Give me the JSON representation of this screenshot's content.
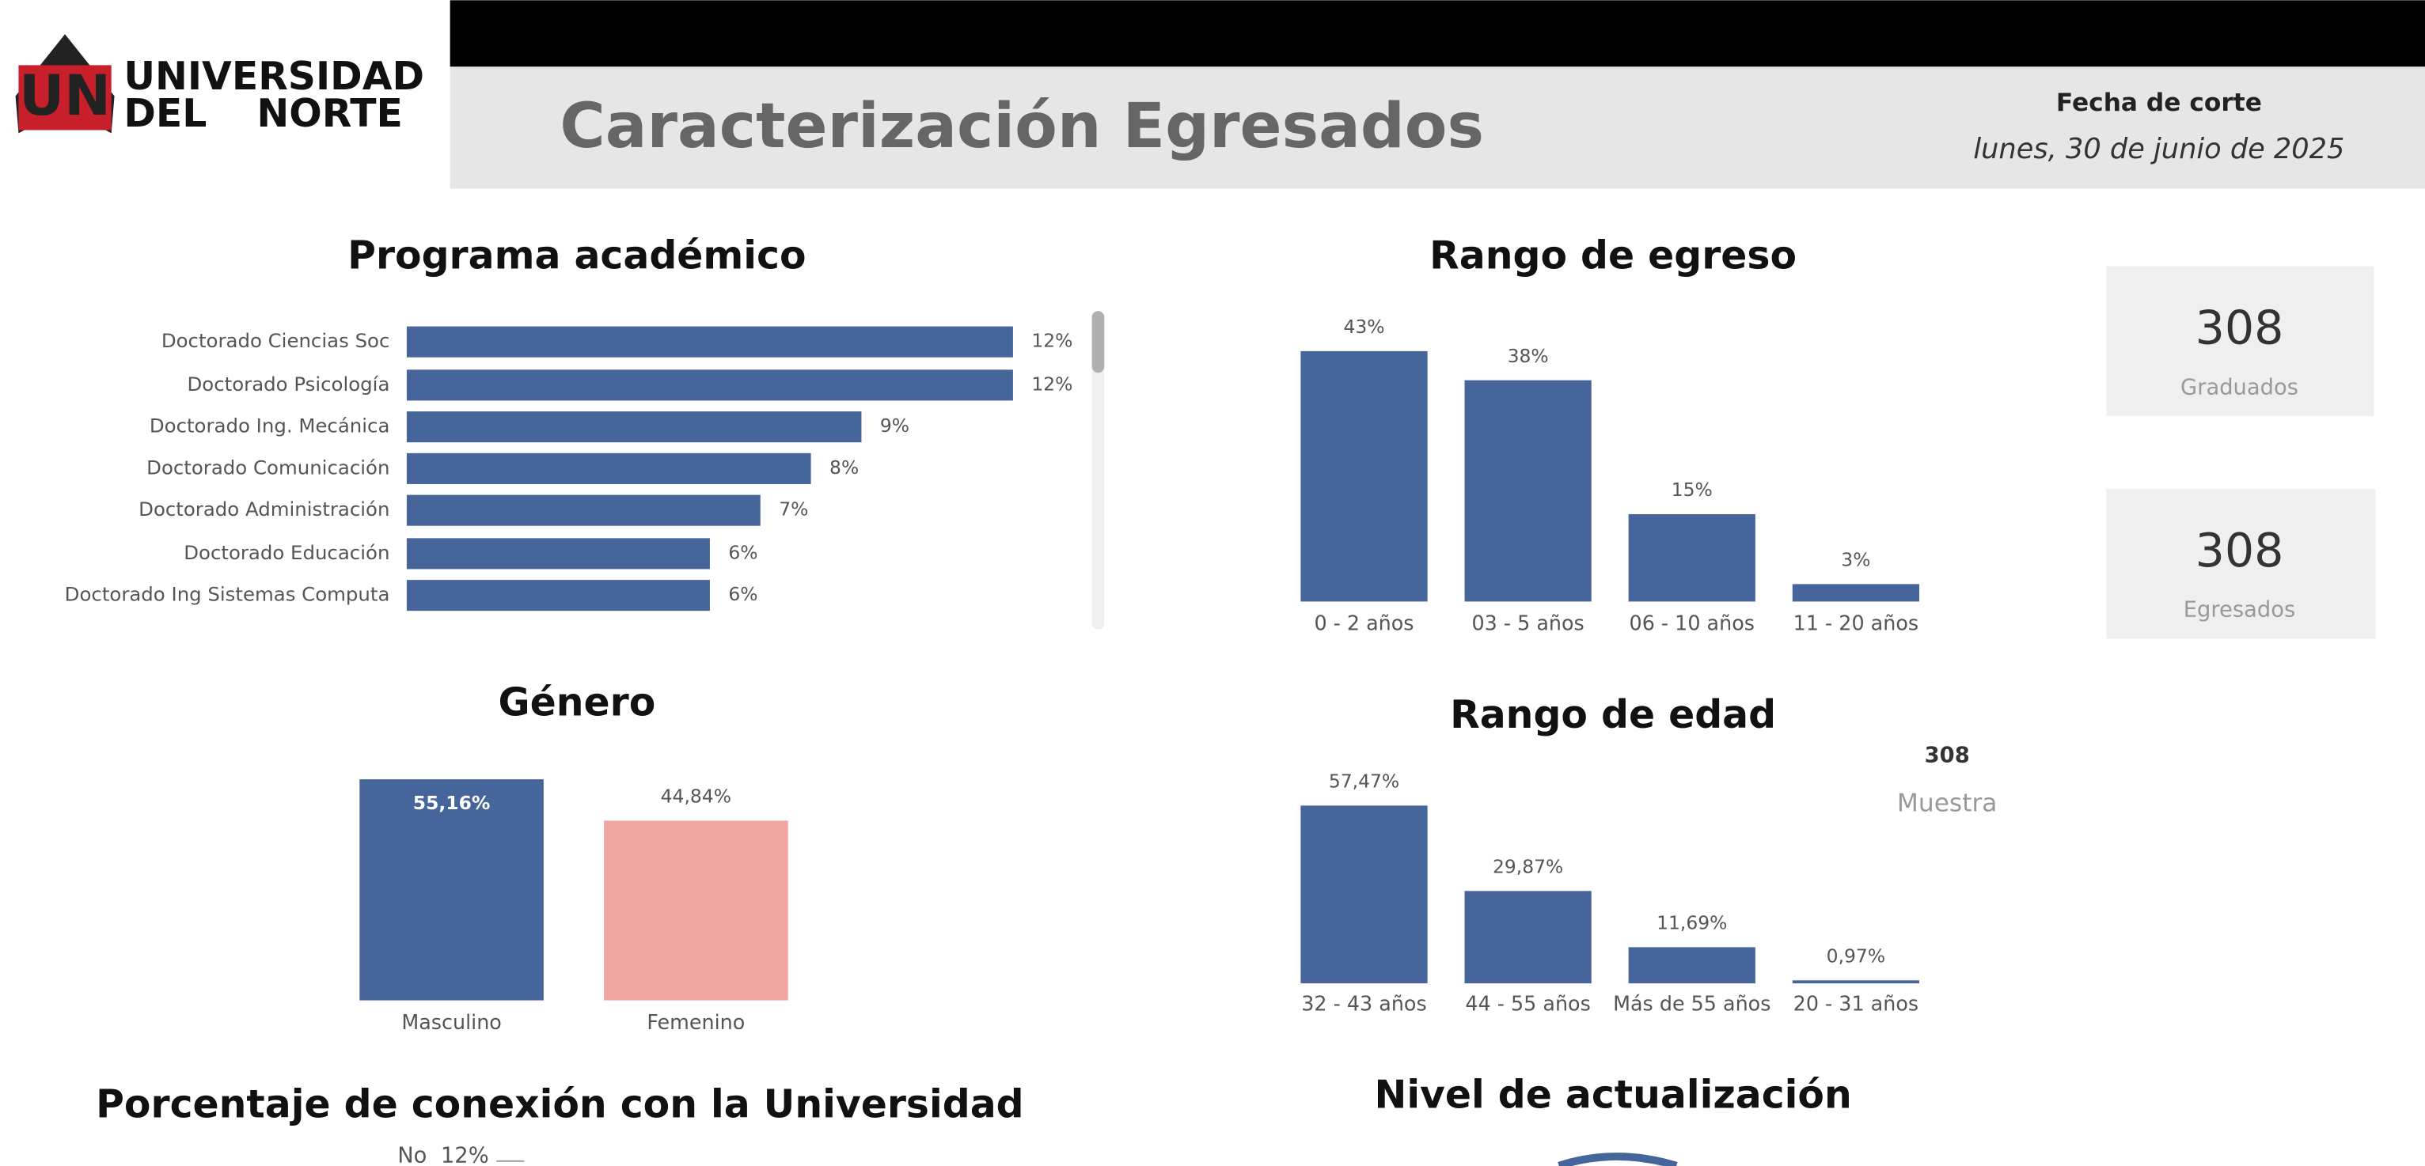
{
  "header": {
    "logo_mark": "UN",
    "logo_line1": "UNIVERSIDAD",
    "logo_line2a": "DEL",
    "logo_line2b": "NORTE",
    "title": "Caracterización Egresados",
    "cutoff_label": "Fecha de corte",
    "cutoff_date": "lunes, 30 de junio de 2025"
  },
  "kpis": [
    {
      "value": 308,
      "label": "Graduados"
    },
    {
      "value": 308,
      "label": "Egresados"
    },
    {
      "value": 308,
      "label": "Muestra"
    }
  ],
  "chart_data": [
    {
      "type": "bar",
      "orientation": "horizontal",
      "title": "Programa académico",
      "color": "#46659a",
      "categories": [
        "Doctorado Ciencias Soc",
        "Doctorado Psicología",
        "Doctorado Ing. Mecánica",
        "Doctorado Comunicación",
        "Doctorado Administración",
        "Doctorado Educación",
        "Doctorado Ing Sistemas Computa"
      ],
      "values": [
        12,
        12,
        9,
        8,
        7,
        6,
        6
      ],
      "value_labels": [
        "12%",
        "12%",
        "9%",
        "8%",
        "7%",
        "6%",
        "6%"
      ]
    },
    {
      "type": "bar",
      "orientation": "vertical",
      "title": "Rango de egreso",
      "color": "#46659a",
      "categories": [
        "0 - 2 años",
        "03 - 5 años",
        "06 - 10 años",
        "11 - 20 años"
      ],
      "values": [
        43,
        38,
        15,
        3
      ],
      "value_labels": [
        "43%",
        "38%",
        "15%",
        "3%"
      ]
    },
    {
      "type": "bar",
      "orientation": "vertical",
      "title": "Género",
      "colors": [
        "#46659a",
        "#f0a5a1"
      ],
      "categories": [
        "Masculino",
        "Femenino"
      ],
      "values": [
        55.16,
        44.84
      ],
      "value_labels": [
        "55,16%",
        "44,84%"
      ]
    },
    {
      "type": "bar",
      "orientation": "vertical",
      "title": "Rango de edad",
      "color": "#46659a",
      "categories": [
        "32 - 43 años",
        "44 - 55 años",
        "Más de 55 años",
        "20 - 31 años"
      ],
      "values": [
        57.47,
        29.87,
        11.69,
        0.97
      ],
      "value_labels": [
        "57,47%",
        "29,87%",
        "11,69%",
        "0,97%"
      ]
    },
    {
      "type": "pie",
      "title": "Porcentaje de conexión con la Universidad",
      "categories": [
        "No"
      ],
      "values": [
        12
      ],
      "value_labels": [
        "12%"
      ]
    },
    {
      "type": "donut",
      "title": "Nivel de actualización",
      "color": "#46659a"
    }
  ]
}
